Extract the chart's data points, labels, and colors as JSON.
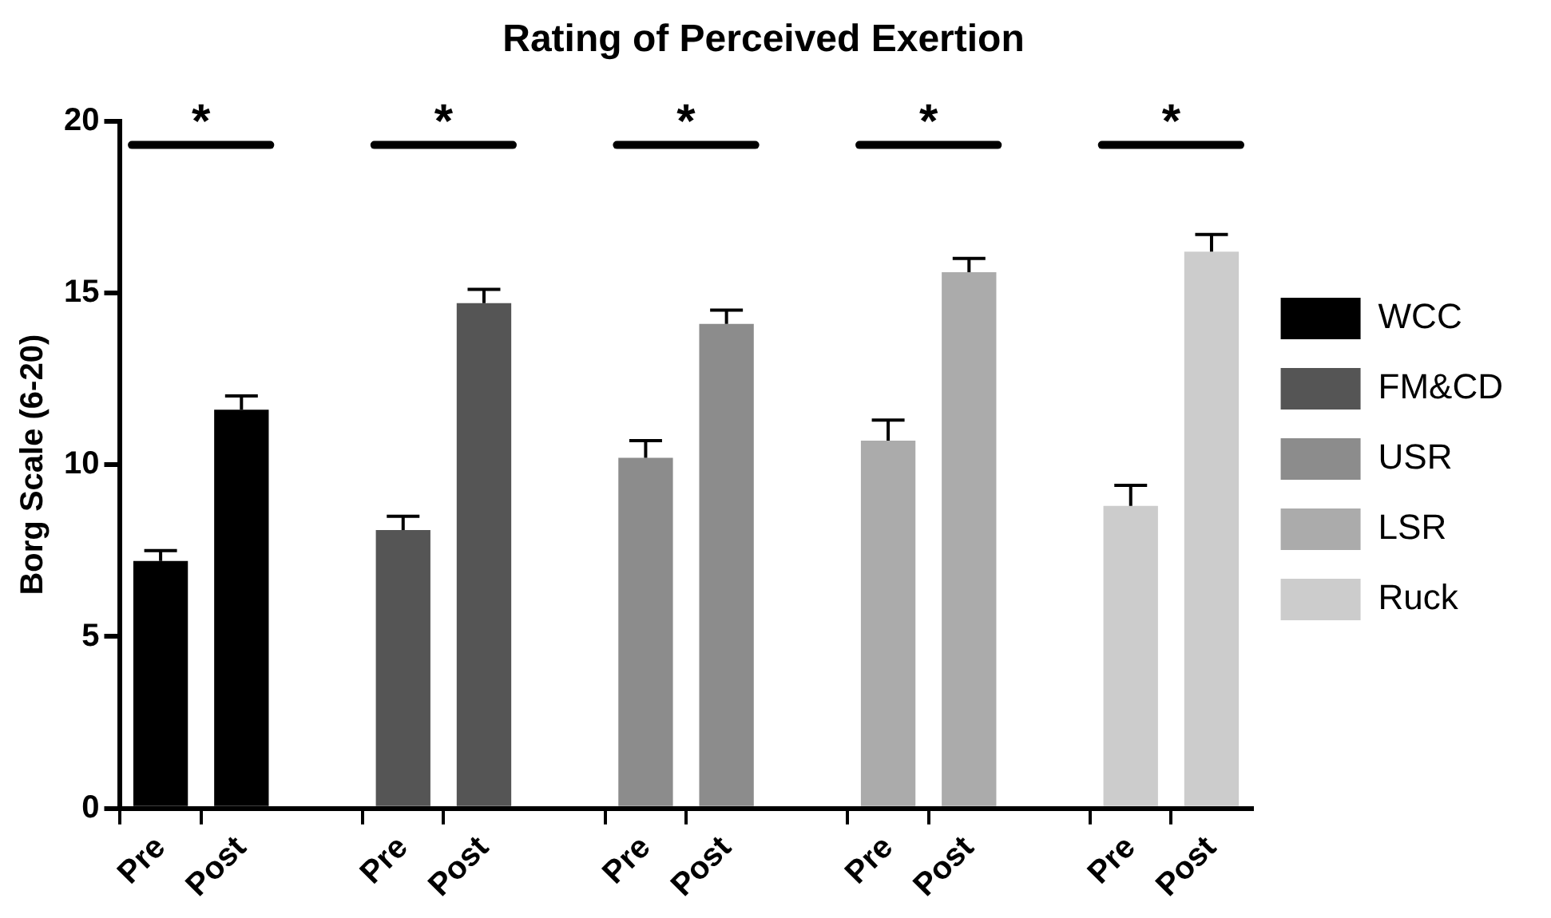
{
  "chart_data": {
    "type": "bar",
    "title": "Rating of Perceived Exertion",
    "ylabel": "Borg Scale (6-20)",
    "categories": [
      "Pre",
      "Post",
      null,
      "Pre",
      "Post",
      null,
      "Pre",
      "Post",
      null,
      "Pre",
      "Post",
      null,
      "Pre",
      "Post"
    ],
    "series": [
      {
        "name": "WCC",
        "color": "#000000",
        "values": [
          7.2,
          11.6,
          null,
          null,
          null,
          null,
          null,
          null,
          null,
          null,
          null,
          null,
          null,
          null
        ],
        "errors": [
          [
            7.2,
            7.5
          ],
          [
            11.6,
            12.0
          ],
          null,
          null,
          null,
          null,
          null,
          null,
          null,
          null,
          null,
          null,
          null,
          null
        ]
      },
      {
        "name": "FM&CD",
        "color": "#555555",
        "values": [
          null,
          null,
          null,
          8.1,
          14.7,
          null,
          null,
          null,
          null,
          null,
          null,
          null,
          null,
          null
        ],
        "errors": [
          null,
          null,
          null,
          [
            8.1,
            8.5
          ],
          [
            14.7,
            15.1
          ],
          null,
          null,
          null,
          null,
          null,
          null,
          null,
          null,
          null
        ]
      },
      {
        "name": "USR",
        "color": "#8c8c8c",
        "values": [
          null,
          null,
          null,
          null,
          null,
          null,
          10.2,
          14.1,
          null,
          null,
          null,
          null,
          null,
          null
        ],
        "errors": [
          null,
          null,
          null,
          null,
          null,
          null,
          [
            10.2,
            10.7
          ],
          [
            14.1,
            14.5
          ],
          null,
          null,
          null,
          null,
          null,
          null
        ]
      },
      {
        "name": "LSR",
        "color": "#ababab",
        "values": [
          null,
          null,
          null,
          null,
          null,
          null,
          null,
          null,
          null,
          10.7,
          15.6,
          null,
          null,
          null
        ],
        "errors": [
          null,
          null,
          null,
          null,
          null,
          null,
          null,
          null,
          null,
          [
            10.7,
            11.3
          ],
          [
            15.6,
            16.0
          ],
          null,
          null,
          null
        ]
      },
      {
        "name": "Ruck",
        "color": "#cccccc",
        "values": [
          null,
          null,
          null,
          null,
          null,
          null,
          null,
          null,
          null,
          null,
          null,
          null,
          8.8,
          16.2
        ],
        "errors": [
          null,
          null,
          null,
          null,
          null,
          null,
          null,
          null,
          null,
          null,
          null,
          null,
          [
            8.8,
            9.4
          ],
          [
            16.2,
            16.7
          ]
        ]
      }
    ],
    "ylim": [
      0,
      20
    ],
    "yticks": [
      0,
      5,
      10,
      15,
      20
    ],
    "grid": false,
    "legend": "right",
    "annotations": [
      "*",
      "*",
      "*",
      "*",
      "*"
    ]
  }
}
